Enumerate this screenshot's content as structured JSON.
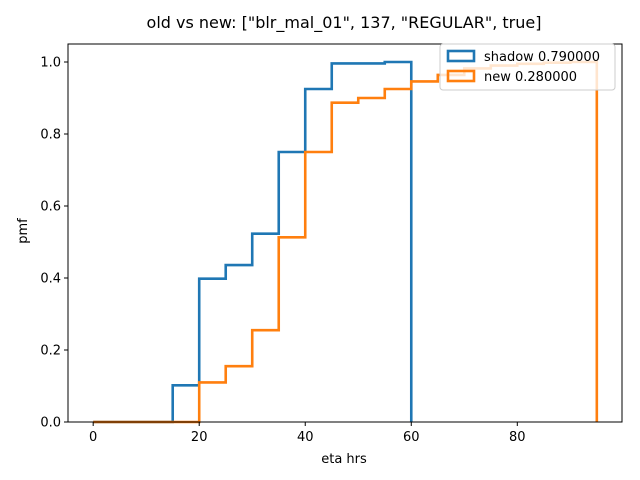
{
  "chart_data": {
    "type": "line",
    "title": "old vs new: [\"blr_mal_01\", 137, \"REGULAR\", true]",
    "xlabel": "eta hrs",
    "ylabel": "pmf",
    "xlim": [
      -4.75,
      99.75
    ],
    "ylim": [
      0,
      1.05
    ],
    "xticks": [
      0,
      20,
      40,
      60,
      80
    ],
    "yticks": [
      0.0,
      0.2,
      0.4,
      0.6,
      0.8,
      1.0
    ],
    "xtick_labels": [
      "0",
      "20",
      "40",
      "60",
      "80"
    ],
    "ytick_labels": [
      "0.0",
      "0.2",
      "0.4",
      "0.6",
      "0.8",
      "1.0"
    ],
    "grid": false,
    "legend": "top-right",
    "series": [
      {
        "name": "shadow 0.790000",
        "color": "#1f77b4",
        "style": "step-histogram",
        "bin_edges": [
          0,
          5,
          10,
          15,
          20,
          25,
          30,
          35,
          40,
          45,
          50,
          55,
          60
        ],
        "values": [
          0.0,
          0.0,
          0.0,
          0.102,
          0.398,
          0.436,
          0.523,
          0.75,
          0.925,
          0.996,
          0.996,
          1.0
        ]
      },
      {
        "name": "new 0.280000",
        "color": "#ff7f0e",
        "style": "step-histogram",
        "bin_edges": [
          0,
          5,
          10,
          15,
          20,
          25,
          30,
          35,
          40,
          45,
          50,
          55,
          60,
          65,
          70,
          75,
          80,
          85,
          90,
          95
        ],
        "values": [
          0.0,
          0.0,
          0.0,
          0.0,
          0.11,
          0.155,
          0.255,
          0.513,
          0.75,
          0.887,
          0.9,
          0.925,
          0.946,
          0.964,
          0.982,
          0.99,
          0.995,
          0.998,
          1.0
        ]
      }
    ]
  }
}
